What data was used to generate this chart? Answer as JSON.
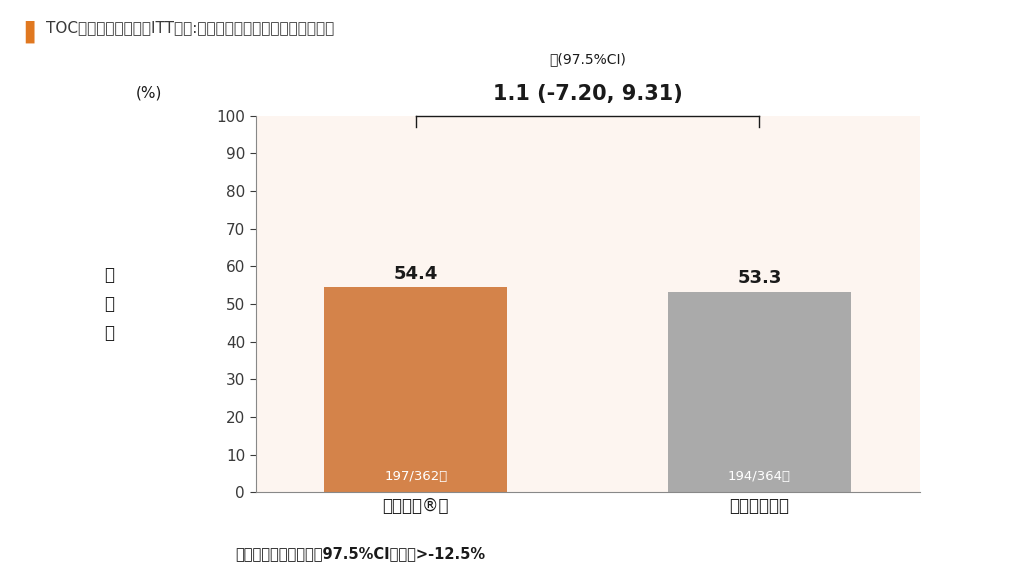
{
  "title": "TOC時点の臨床効果（ITT集団:主要評価項目、検証的解析項目）",
  "title_color": "#3a3a3a",
  "title_marker_color": "#e07820",
  "bar1_value": 54.4,
  "bar2_value": 53.3,
  "bar1_label": "ザバクサ®群",
  "bar2_label": "メロペネム群",
  "bar1_color": "#d4834a",
  "bar2_color": "#aaaaaa",
  "bar1_inner_text": "197/362例",
  "bar2_inner_text": "194/364例",
  "bar1_inner_color": "#ffffff",
  "bar2_inner_color": "#ffffff",
  "ylabel": "有\n効\n率",
  "yunit": "(%)",
  "ylim": [
    0,
    100
  ],
  "yticks": [
    0,
    10,
    20,
    30,
    40,
    50,
    60,
    70,
    80,
    90,
    100
  ],
  "diff_label_small": "差(97.5%CI)",
  "diff_label_big": "1.1 (-7.20, 9.31)",
  "diff_label_color": "#1a1a1a",
  "footnote": "非劣性マージン：両側97.5%CIの下限>-12.5%",
  "plot_bg_color": "#fdf5f0",
  "fig_bg_color": "#ffffff"
}
